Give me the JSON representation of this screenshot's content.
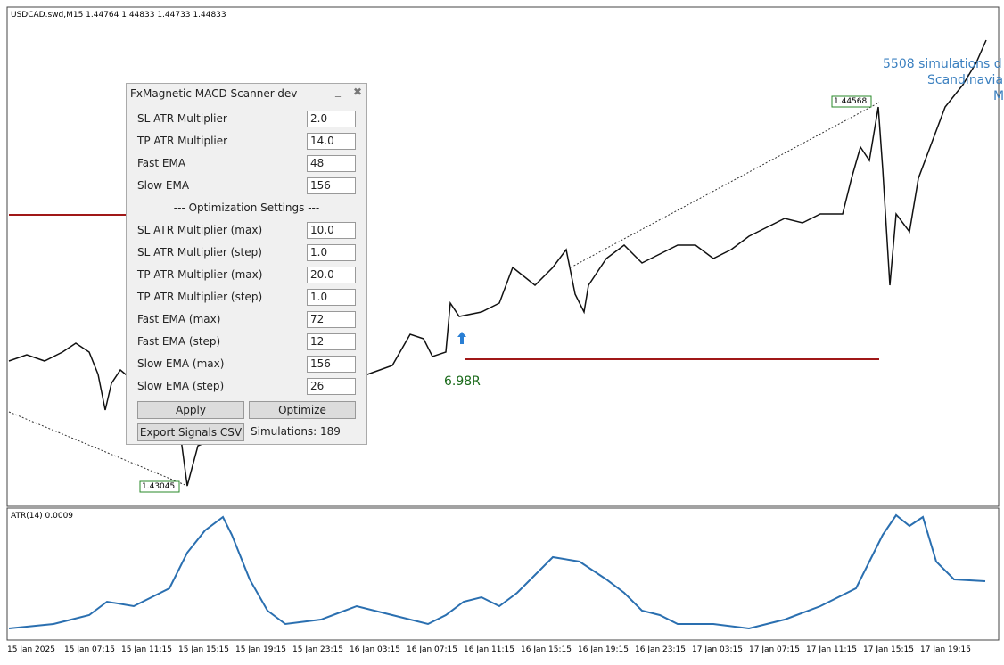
{
  "chart_header": "USDCAD.swd,M15  1.44764 1.44833 1.44733 1.44833",
  "panel": {
    "title": "FxMagnetic MACD Scanner-dev",
    "fields": [
      {
        "label": "SL ATR Multiplier",
        "value": "2.0"
      },
      {
        "label": "TP ATR Multiplier",
        "value": "14.0"
      },
      {
        "label": "Fast EMA",
        "value": "48"
      },
      {
        "label": "Slow EMA",
        "value": "156"
      }
    ],
    "section": "--- Optimization Settings ---",
    "opt_fields": [
      {
        "label": "SL ATR Multiplier (max)",
        "value": "10.0"
      },
      {
        "label": "SL ATR Multiplier (step)",
        "value": "1.0"
      },
      {
        "label": "TP ATR Multiplier (max)",
        "value": "20.0"
      },
      {
        "label": "TP ATR Multiplier (step)",
        "value": "1.0"
      },
      {
        "label": "Fast EMA (max)",
        "value": "72"
      },
      {
        "label": "Fast EMA (step)",
        "value": "12"
      },
      {
        "label": "Slow EMA (max)",
        "value": "156"
      },
      {
        "label": "Slow EMA (step)",
        "value": "26"
      }
    ],
    "buttons": [
      "Apply",
      "Optimize",
      "Export Signals CSV"
    ],
    "status": "Simulations: 189"
  },
  "price_labels": [
    "1.44568",
    "1.43045"
  ],
  "trade_label": "6.98R",
  "overlay_text": [
    "5508 simulations d",
    "Scandinavia",
    "M"
  ],
  "indicator_header": "ATR(14) 0.0009",
  "time_axis": [
    "15 Jan 2025",
    "15 Jan 07:15",
    "15 Jan 11:15",
    "15 Jan 15:15",
    "15 Jan 19:15",
    "15 Jan 23:15",
    "16 Jan 03:15",
    "16 Jan 07:15",
    "16 Jan 11:15",
    "16 Jan 15:15",
    "16 Jan 19:15",
    "16 Jan 23:15",
    "17 Jan 03:15",
    "17 Jan 07:15",
    "17 Jan 11:15",
    "17 Jan 15:15",
    "17 Jan 19:15"
  ]
}
